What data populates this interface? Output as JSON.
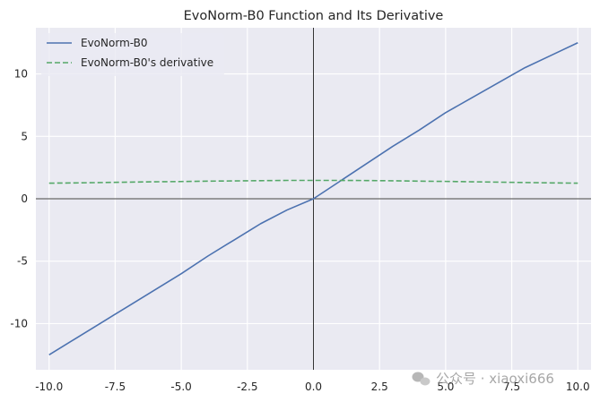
{
  "colors": {
    "plot_background": "#eaeaf2",
    "grid": "#ffffff",
    "axis_line": "#000000",
    "series_function": "#4c72b0",
    "series_derivative": "#55a868",
    "text": "#262626"
  },
  "watermark": {
    "icon": "wechat-icon",
    "text": "公众号 · xiaoxi666"
  },
  "chart_data": {
    "type": "line",
    "title": "EvoNorm-B0 Function and Its Derivative",
    "xlabel": "",
    "ylabel": "",
    "xlim": [
      -10.5,
      10.5
    ],
    "ylim": [
      -13.7,
      13.7
    ],
    "grid": true,
    "legend_position": "top-left",
    "reference_lines": {
      "x": 0,
      "y": 0
    },
    "x_ticks": [
      -10.0,
      -7.5,
      -5.0,
      -2.5,
      0.0,
      2.5,
      5.0,
      7.5,
      10.0
    ],
    "x_tick_labels": [
      "-10.0",
      "-7.5",
      "-5.0",
      "-2.5",
      "0.0",
      "2.5",
      "5.0",
      "7.5",
      "10.0"
    ],
    "y_ticks": [
      -10,
      -5,
      0,
      5,
      10
    ],
    "y_tick_labels": [
      "-10",
      "-5",
      "0",
      "5",
      "10"
    ],
    "x": [
      -10,
      -9,
      -8,
      -7,
      -6,
      -5,
      -4,
      -3,
      -2,
      -1,
      0,
      1,
      2,
      3,
      4,
      5,
      6,
      7,
      8,
      9,
      10
    ],
    "series": [
      {
        "name": "EvoNorm-B0",
        "style": "solid",
        "color": "#4c72b0",
        "values": [
          -12.5,
          -11.2,
          -9.9,
          -8.6,
          -7.3,
          -6.0,
          -4.6,
          -3.3,
          -2.0,
          -0.9,
          0.0,
          1.4,
          2.8,
          4.2,
          5.5,
          6.9,
          8.1,
          9.3,
          10.5,
          11.5,
          12.5
        ]
      },
      {
        "name": "EvoNorm-B0's derivative",
        "style": "dashed",
        "color": "#55a868",
        "values": [
          1.25,
          1.27,
          1.3,
          1.33,
          1.36,
          1.38,
          1.41,
          1.43,
          1.45,
          1.47,
          1.47,
          1.47,
          1.46,
          1.44,
          1.41,
          1.39,
          1.36,
          1.33,
          1.3,
          1.27,
          1.25
        ]
      }
    ]
  }
}
